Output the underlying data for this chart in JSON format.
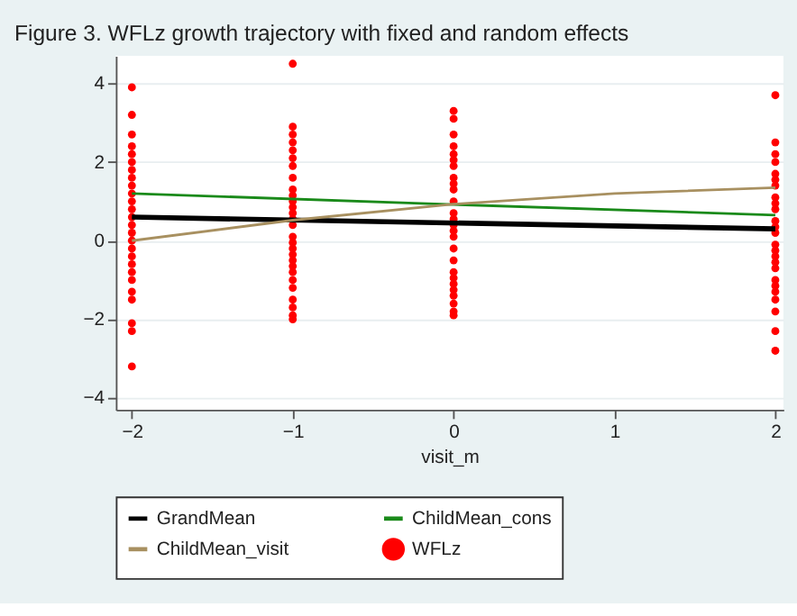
{
  "chart_data": {
    "type": "line",
    "title": "Figure 3. WFLz growth trajectory with fixed and random effects",
    "xlabel": "visit_m",
    "xlim": [
      -2.1,
      2.05
    ],
    "ylim": [
      -4.3,
      4.7
    ],
    "xticks": [
      -2,
      -1,
      0,
      1,
      2
    ],
    "yticks": [
      -4,
      -2,
      0,
      2,
      4
    ],
    "grid": "y",
    "legend": "bottom",
    "series": [
      {
        "name": "GrandMean",
        "color": "#000000",
        "x": [
          -2,
          2
        ],
        "values": [
          0.6,
          0.3
        ]
      },
      {
        "name": "ChildMean_cons",
        "color": "#1a8a1a",
        "x": [
          -2,
          0,
          2
        ],
        "values": [
          1.2,
          0.92,
          0.65
        ]
      },
      {
        "name": "ChildMean_visit",
        "color": "#a89060",
        "x": [
          -2,
          -1,
          0,
          1,
          2
        ],
        "values": [
          0.0,
          0.52,
          0.93,
          1.2,
          1.35
        ]
      },
      {
        "name": "WFLz",
        "type": "scatter",
        "marker": "circle",
        "color": "#ff0000",
        "x": [
          -2,
          -2,
          -2,
          -2,
          -2,
          -2,
          -2,
          -2,
          -2,
          -2,
          -2,
          -2,
          -2,
          -2,
          -2,
          -2,
          -2,
          -2,
          -2,
          -2,
          -2,
          -2,
          -2,
          -2,
          -2,
          -2,
          -1,
          -1,
          -1,
          -1,
          -1,
          -1,
          -1,
          -1,
          -1,
          -1,
          -1,
          -1,
          -1,
          -1,
          -1,
          -1,
          -1,
          -1,
          -1,
          -1,
          -1,
          -1,
          -1,
          -1,
          -1,
          -1,
          -1,
          -1,
          0,
          0,
          0,
          0,
          0,
          0,
          0,
          0,
          0,
          0,
          0,
          0,
          0,
          0,
          0,
          0,
          0,
          0,
          0,
          0,
          0,
          0,
          0,
          0,
          0,
          0,
          2,
          2,
          2,
          2,
          2,
          2,
          2,
          2,
          2,
          2,
          2,
          2,
          2,
          2,
          2,
          2,
          2,
          2,
          2,
          2,
          2,
          2,
          2,
          2,
          2
        ],
        "values": [
          3.9,
          3.2,
          2.7,
          2.4,
          2.2,
          2.0,
          1.8,
          1.6,
          1.4,
          1.2,
          1.0,
          0.8,
          0.6,
          0.4,
          0.2,
          0.0,
          -0.2,
          -0.4,
          -0.6,
          -0.8,
          -1.0,
          -1.3,
          -1.5,
          -2.1,
          -2.3,
          -3.2,
          4.5,
          2.9,
          2.7,
          2.5,
          2.3,
          2.1,
          1.9,
          1.6,
          1.3,
          1.0,
          0.7,
          0.4,
          0.1,
          -0.2,
          -0.5,
          -0.8,
          -1.0,
          -1.2,
          -1.5,
          -1.7,
          -1.9,
          -2.0,
          0.55,
          -0.35,
          0.85,
          -0.65,
          1.15,
          -0.05,
          3.3,
          3.1,
          2.7,
          2.4,
          2.2,
          1.9,
          1.6,
          1.3,
          1.0,
          0.7,
          0.4,
          0.1,
          -0.2,
          -0.5,
          -0.8,
          -1.1,
          -1.4,
          -1.6,
          -1.8,
          -1.9,
          0.25,
          -0.95,
          0.55,
          -1.25,
          1.45,
          2.05,
          3.7,
          2.5,
          2.2,
          2.0,
          1.7,
          1.4,
          1.1,
          0.8,
          0.5,
          0.2,
          -0.1,
          -0.4,
          -0.7,
          -1.0,
          -1.3,
          -1.5,
          -1.8,
          -2.3,
          -2.8,
          0.35,
          -0.25,
          0.95,
          -0.55,
          1.55,
          -1.15
        ]
      }
    ]
  }
}
